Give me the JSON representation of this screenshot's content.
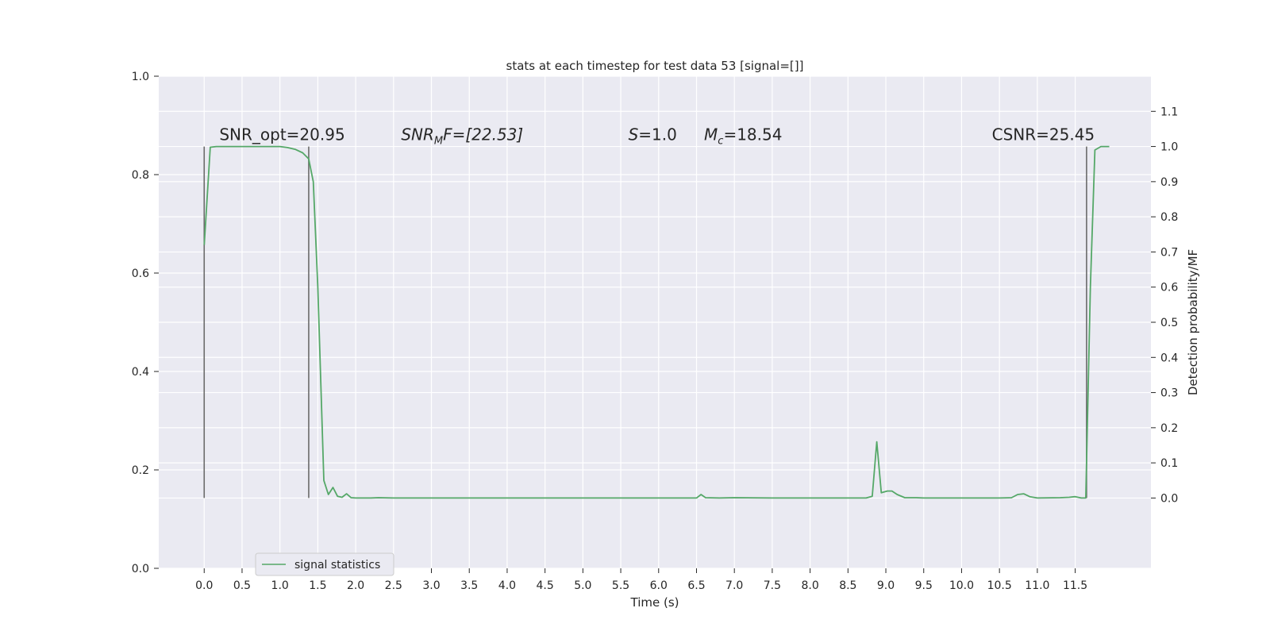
{
  "chart_data": {
    "type": "line",
    "title": "stats at each timestep for test data 53 [signal=[]]",
    "xlabel": "Time (s)",
    "ylabel": "",
    "y2label": "Detection probability/MF",
    "xlim": [
      -0.6,
      12.5
    ],
    "ylim": [
      0.0,
      1.0
    ],
    "y2lim": [
      -0.2,
      1.2
    ],
    "x_ticks": [
      "0.0",
      "0.5",
      "1.0",
      "1.5",
      "2.0",
      "2.5",
      "3.0",
      "3.5",
      "4.0",
      "4.5",
      "5.0",
      "5.5",
      "6.0",
      "6.5",
      "7.0",
      "7.5",
      "8.0",
      "8.5",
      "9.0",
      "9.5",
      "10.0",
      "10.5",
      "11.0",
      "11.5"
    ],
    "y_ticks": [
      "0.0",
      "0.2",
      "0.4",
      "0.6",
      "0.8",
      "1.0"
    ],
    "y2_ticks": [
      "0.0",
      "0.1",
      "0.2",
      "0.3",
      "0.4",
      "0.5",
      "0.6",
      "0.7",
      "0.8",
      "0.9",
      "1.0",
      "1.1"
    ],
    "grid": true,
    "legend_position": "lower-left",
    "series": [
      {
        "name": "signal statistics",
        "color": "#55a868",
        "axis": "right",
        "x": [
          0.0,
          0.08,
          0.16,
          0.24,
          0.4,
          0.6,
          0.8,
          1.0,
          1.1,
          1.2,
          1.3,
          1.38,
          1.44,
          1.5,
          1.58,
          1.64,
          1.7,
          1.76,
          1.82,
          1.88,
          1.94,
          2.0,
          2.2,
          2.3,
          2.5,
          3.0,
          4.0,
          5.0,
          6.0,
          6.5,
          6.56,
          6.62,
          6.8,
          7.0,
          7.5,
          8.0,
          8.5,
          8.74,
          8.82,
          8.88,
          8.94,
          9.02,
          9.08,
          9.15,
          9.25,
          9.4,
          9.5,
          10.0,
          10.5,
          10.66,
          10.74,
          10.82,
          10.9,
          11.0,
          11.3,
          11.42,
          11.5,
          11.58,
          11.64,
          11.7,
          11.76,
          11.84,
          11.95
        ],
        "y": [
          0.72,
          0.998,
          1.0,
          1.0,
          1.0,
          1.0,
          1.0,
          1.0,
          0.997,
          0.992,
          0.982,
          0.965,
          0.9,
          0.6,
          0.05,
          0.01,
          0.03,
          0.005,
          0.002,
          0.012,
          0.001,
          0.0,
          0.0,
          0.001,
          0.0,
          0.0,
          0.0,
          0.0,
          0.0,
          0.0,
          0.01,
          0.001,
          0.0,
          0.001,
          0.0,
          0.0,
          0.0,
          0.0,
          0.005,
          0.16,
          0.015,
          0.02,
          0.02,
          0.01,
          0.001,
          0.001,
          0.0,
          0.0,
          0.0,
          0.001,
          0.01,
          0.012,
          0.004,
          0.0,
          0.001,
          0.002,
          0.004,
          0.0,
          0.0,
          0.6,
          0.99,
          1.0,
          1.0
        ]
      }
    ],
    "vlines": [
      0.0,
      1.38,
      11.65
    ],
    "annotations": [
      {
        "text": "SNR_opt=20.95"
      },
      {
        "text": "SNR",
        "sub": "M",
        "rest": "F=[22.53]",
        "italic": true
      },
      {
        "text": "S",
        "rest": "=1.0",
        "italic": true
      },
      {
        "text": "M",
        "sub": "c",
        "rest": "=18.54",
        "italic": true
      },
      {
        "text": "CSNR=25.45"
      }
    ],
    "annotation_x": [
      0.2,
      2.6,
      5.6,
      6.6,
      10.4
    ],
    "annotation_y": 1.0
  }
}
